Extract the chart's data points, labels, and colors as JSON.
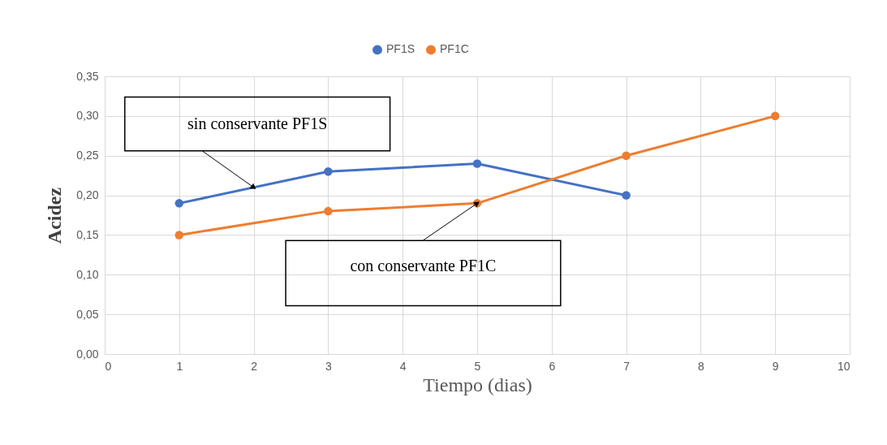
{
  "chart_data": {
    "type": "line",
    "xlabel": "Tiempo (dias)",
    "ylabel": "Acidez",
    "series": [
      {
        "name": "PF1S",
        "color": "#4472c4",
        "x": [
          1,
          3,
          5,
          7
        ],
        "values": [
          0.19,
          0.23,
          0.24,
          0.2
        ]
      },
      {
        "name": "PF1C",
        "color": "#ed7d31",
        "x": [
          1,
          3,
          5,
          7,
          9
        ],
        "values": [
          0.15,
          0.18,
          0.19,
          0.25,
          0.3
        ]
      }
    ],
    "xlim": [
      0,
      10
    ],
    "xticks": [
      0,
      1,
      2,
      3,
      4,
      5,
      6,
      7,
      8,
      9,
      10
    ],
    "ylim": [
      0,
      0.35
    ],
    "yticks": [
      {
        "value": 0,
        "label": "0,00"
      },
      {
        "value": 0.05,
        "label": "0,05"
      },
      {
        "value": 0.1,
        "label": "0,10"
      },
      {
        "value": 0.15,
        "label": "0,15"
      },
      {
        "value": 0.2,
        "label": "0,20"
      },
      {
        "value": 0.25,
        "label": "0,25"
      },
      {
        "value": 0.3,
        "label": "0,30"
      },
      {
        "value": 0.35,
        "label": "0,35"
      }
    ],
    "annotations": [
      {
        "text": "sin conservante PF1S",
        "x": 2,
        "y": 0.21
      },
      {
        "text": "con conservante PF1C",
        "x": 5,
        "y": 0.19
      }
    ],
    "grid": true,
    "legend": "top",
    "marker": "circle",
    "line_style": "solid"
  }
}
